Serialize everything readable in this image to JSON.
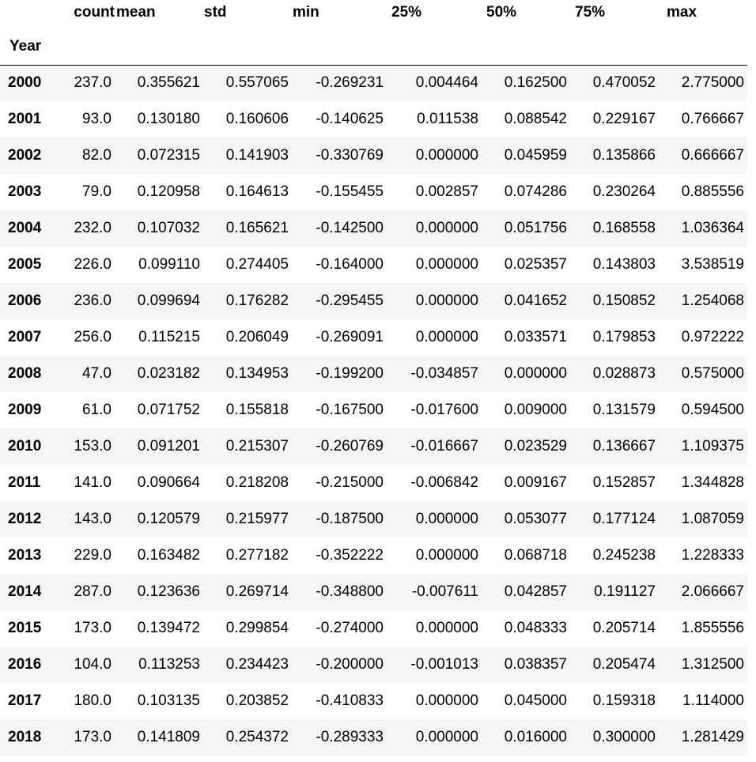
{
  "table": {
    "index_name": "Year",
    "columns": [
      "count",
      "mean",
      "std",
      "min",
      "25%",
      "50%",
      "75%",
      "max"
    ],
    "rows": [
      {
        "year": "2000",
        "values": [
          "237.0",
          "0.355621",
          "0.557065",
          "-0.269231",
          "0.004464",
          "0.162500",
          "0.470052",
          "2.775000"
        ]
      },
      {
        "year": "2001",
        "values": [
          "93.0",
          "0.130180",
          "0.160606",
          "-0.140625",
          "0.011538",
          "0.088542",
          "0.229167",
          "0.766667"
        ]
      },
      {
        "year": "2002",
        "values": [
          "82.0",
          "0.072315",
          "0.141903",
          "-0.330769",
          "0.000000",
          "0.045959",
          "0.135866",
          "0.666667"
        ]
      },
      {
        "year": "2003",
        "values": [
          "79.0",
          "0.120958",
          "0.164613",
          "-0.155455",
          "0.002857",
          "0.074286",
          "0.230264",
          "0.885556"
        ]
      },
      {
        "year": "2004",
        "values": [
          "232.0",
          "0.107032",
          "0.165621",
          "-0.142500",
          "0.000000",
          "0.051756",
          "0.168558",
          "1.036364"
        ]
      },
      {
        "year": "2005",
        "values": [
          "226.0",
          "0.099110",
          "0.274405",
          "-0.164000",
          "0.000000",
          "0.025357",
          "0.143803",
          "3.538519"
        ]
      },
      {
        "year": "2006",
        "values": [
          "236.0",
          "0.099694",
          "0.176282",
          "-0.295455",
          "0.000000",
          "0.041652",
          "0.150852",
          "1.254068"
        ]
      },
      {
        "year": "2007",
        "values": [
          "256.0",
          "0.115215",
          "0.206049",
          "-0.269091",
          "0.000000",
          "0.033571",
          "0.179853",
          "0.972222"
        ]
      },
      {
        "year": "2008",
        "values": [
          "47.0",
          "0.023182",
          "0.134953",
          "-0.199200",
          "-0.034857",
          "0.000000",
          "0.028873",
          "0.575000"
        ]
      },
      {
        "year": "2009",
        "values": [
          "61.0",
          "0.071752",
          "0.155818",
          "-0.167500",
          "-0.017600",
          "0.009000",
          "0.131579",
          "0.594500"
        ]
      },
      {
        "year": "2010",
        "values": [
          "153.0",
          "0.091201",
          "0.215307",
          "-0.260769",
          "-0.016667",
          "0.023529",
          "0.136667",
          "1.109375"
        ]
      },
      {
        "year": "2011",
        "values": [
          "141.0",
          "0.090664",
          "0.218208",
          "-0.215000",
          "-0.006842",
          "0.009167",
          "0.152857",
          "1.344828"
        ]
      },
      {
        "year": "2012",
        "values": [
          "143.0",
          "0.120579",
          "0.215977",
          "-0.187500",
          "0.000000",
          "0.053077",
          "0.177124",
          "1.087059"
        ]
      },
      {
        "year": "2013",
        "values": [
          "229.0",
          "0.163482",
          "0.277182",
          "-0.352222",
          "0.000000",
          "0.068718",
          "0.245238",
          "1.228333"
        ]
      },
      {
        "year": "2014",
        "values": [
          "287.0",
          "0.123636",
          "0.269714",
          "-0.348800",
          "-0.007611",
          "0.042857",
          "0.191127",
          "2.066667"
        ]
      },
      {
        "year": "2015",
        "values": [
          "173.0",
          "0.139472",
          "0.299854",
          "-0.274000",
          "0.000000",
          "0.048333",
          "0.205714",
          "1.855556"
        ]
      },
      {
        "year": "2016",
        "values": [
          "104.0",
          "0.113253",
          "0.234423",
          "-0.200000",
          "-0.001013",
          "0.038357",
          "0.205474",
          "1.312500"
        ]
      },
      {
        "year": "2017",
        "values": [
          "180.0",
          "0.103135",
          "0.203852",
          "-0.410833",
          "0.000000",
          "0.045000",
          "0.159318",
          "1.114000"
        ]
      },
      {
        "year": "2018",
        "values": [
          "173.0",
          "0.141809",
          "0.254372",
          "-0.289333",
          "0.000000",
          "0.016000",
          "0.300000",
          "1.281429"
        ]
      }
    ]
  },
  "colors": {
    "stripe": "#f5f5f5",
    "background": "#ffffff",
    "rule": "#000000"
  }
}
